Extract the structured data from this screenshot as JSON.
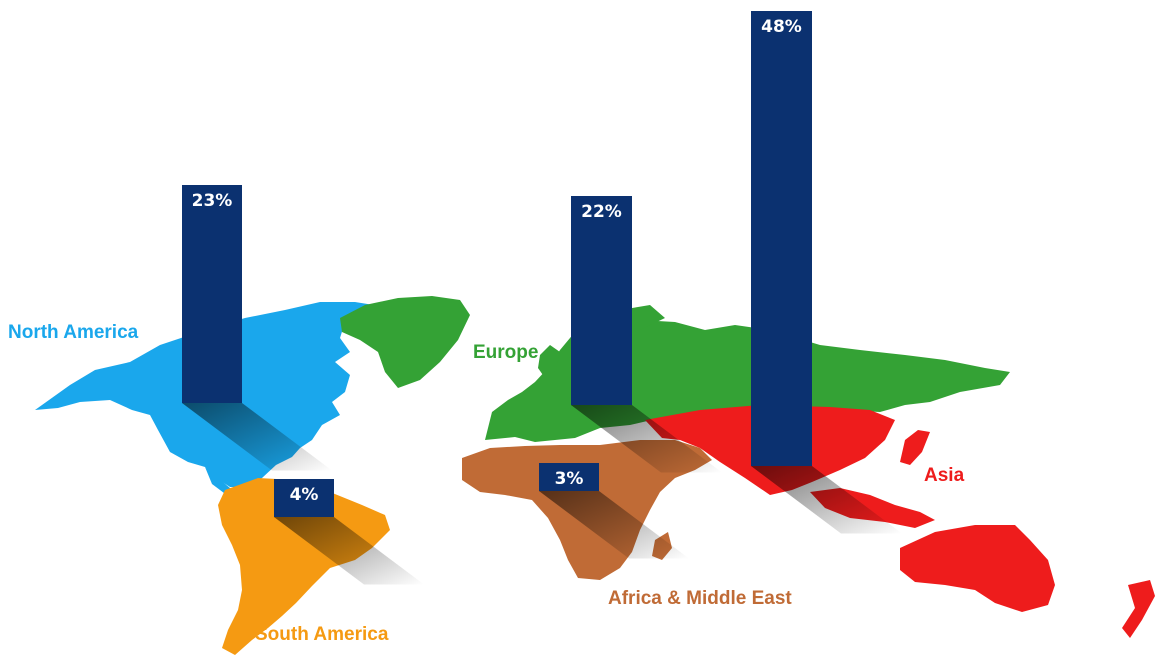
{
  "chart_data": {
    "type": "bar",
    "categories": [
      "North America",
      "South America",
      "Europe",
      "Africa & Middle East",
      "Asia"
    ],
    "values": [
      23,
      4,
      22,
      3,
      48
    ],
    "value_labels": [
      "23%",
      "4%",
      "22%",
      "3%",
      "48%"
    ],
    "title": "",
    "xlabel": "",
    "ylabel": "",
    "ylim": [
      0,
      50
    ],
    "grid": false,
    "legend": "none",
    "bar_color": "#0b3170",
    "region_colors": {
      "North America": "#1aa7ec",
      "South America": "#f59a12",
      "Europe": "#34a235",
      "Africa & Middle East": "#c06b36",
      "Asia": "#ee1c1c"
    }
  }
}
